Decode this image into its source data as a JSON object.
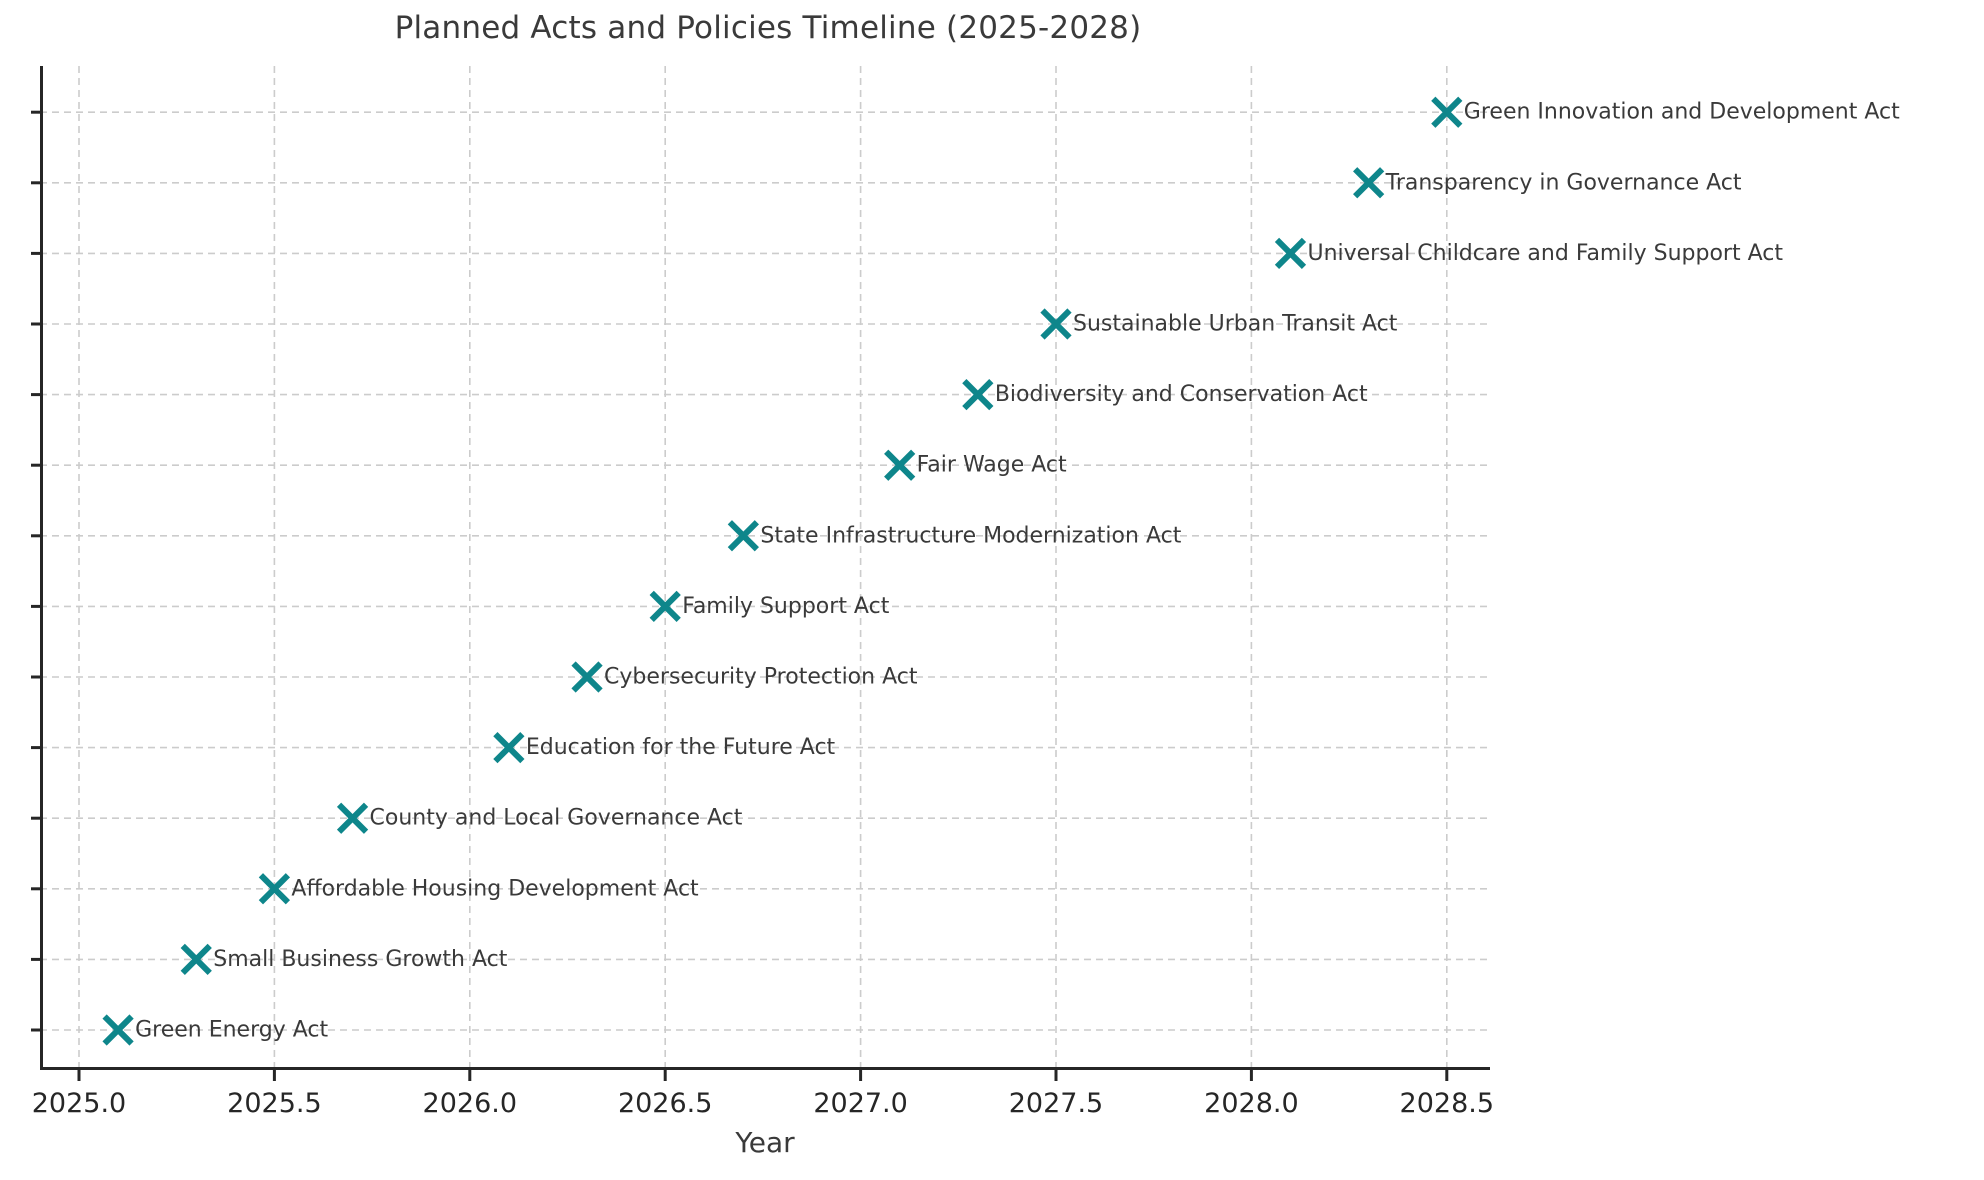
{
  "chart_data": {
    "type": "scatter",
    "title": "Planned Acts and Policies Timeline (2025-2028)",
    "xlabel": "Year",
    "ylabel": "",
    "xlim": [
      2024.9,
      2028.61
    ],
    "xticks": [
      2025.0,
      2025.5,
      2026.0,
      2026.5,
      2027.0,
      2027.5,
      2028.0,
      2028.5
    ],
    "grid": true,
    "legend": "none",
    "marker_symbol": "x",
    "marker_color": "#0e868b",
    "text_color": "#3a3a3a",
    "axis_color": "#262626",
    "grid_color": "#cccccc",
    "points_bottom_to_top": [
      {
        "label": "Green Energy Act",
        "year": 2025.1
      },
      {
        "label": "Small Business Growth Act",
        "year": 2025.3
      },
      {
        "label": "Affordable Housing Development Act",
        "year": 2025.5
      },
      {
        "label": "County and Local Governance Act",
        "year": 2025.7
      },
      {
        "label": "Education for the Future Act",
        "year": 2026.1
      },
      {
        "label": "Cybersecurity Protection Act",
        "year": 2026.3
      },
      {
        "label": "Family Support Act",
        "year": 2026.5
      },
      {
        "label": "State Infrastructure Modernization Act",
        "year": 2026.7
      },
      {
        "label": "Fair Wage Act",
        "year": 2027.1
      },
      {
        "label": "Biodiversity and Conservation Act",
        "year": 2027.3
      },
      {
        "label": "Sustainable Urban Transit Act",
        "year": 2027.5
      },
      {
        "label": "Universal Childcare and Family Support Act",
        "year": 2028.1
      },
      {
        "label": "Transparency in Governance Act",
        "year": 2028.3
      },
      {
        "label": "Green Innovation and Development Act",
        "year": 2028.5
      }
    ]
  }
}
